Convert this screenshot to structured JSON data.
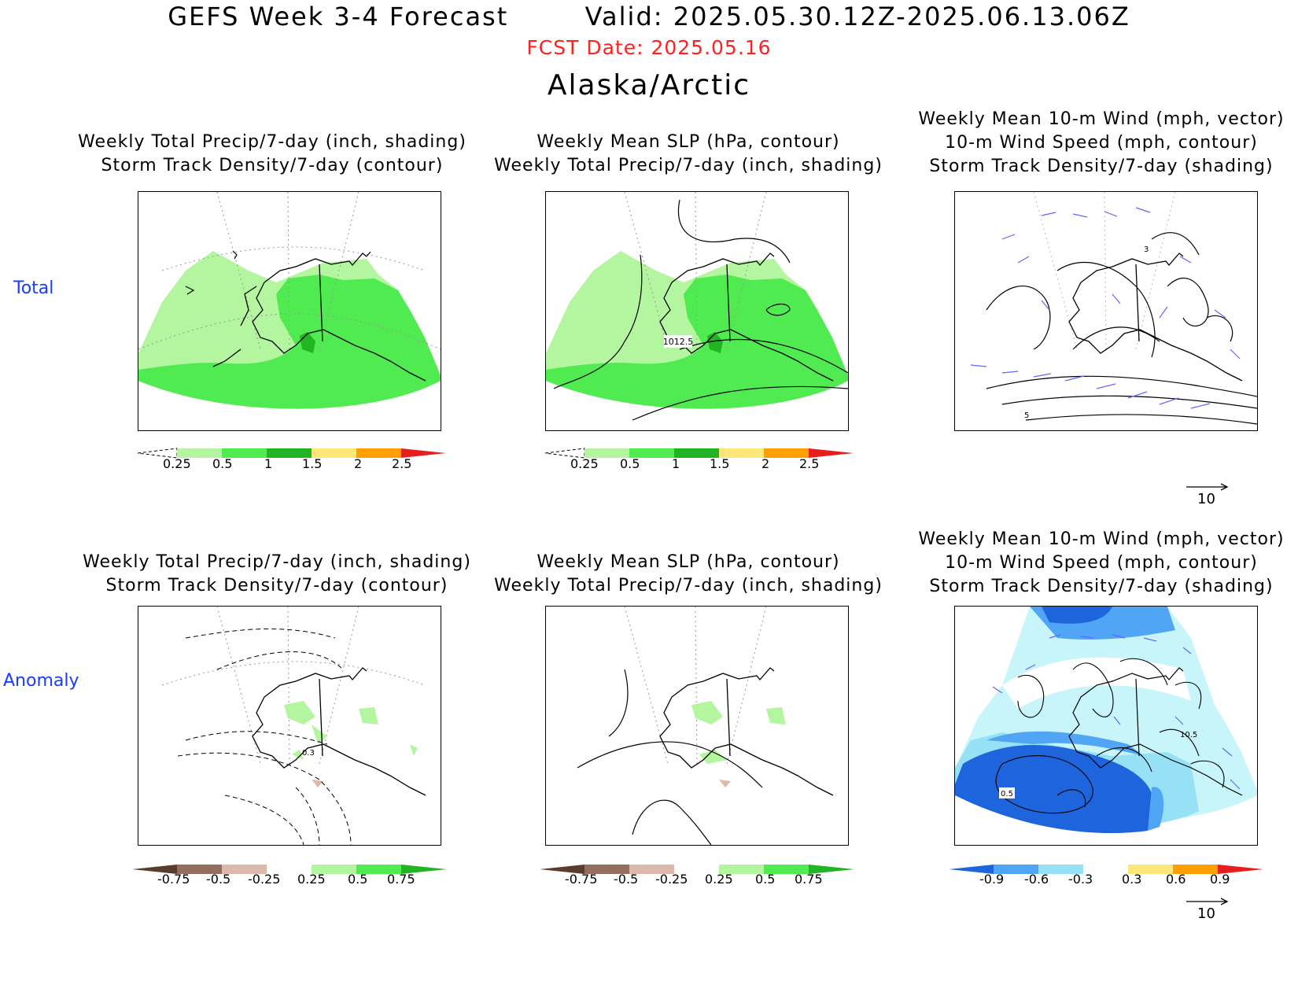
{
  "header": {
    "title": "GEFS Week 3-4 Forecast",
    "valid": "Valid: 2025.05.30.12Z-2025.06.13.06Z",
    "fcst_date": "FCST Date: 2025.05.16",
    "region": "Alaska/Arctic"
  },
  "rows": {
    "total": "Total",
    "anomaly": "Anomaly"
  },
  "panels": {
    "precip": {
      "line1": "Weekly Total Precip/7-day (inch, shading)",
      "line2": "Storm Track Density/7-day (contour)"
    },
    "slp": {
      "line1": "Weekly Mean SLP (hPa, contour)",
      "line2": "Weekly Total Precip/7-day (inch, shading)"
    },
    "wind": {
      "line1": "Weekly Mean 10-m Wind (mph, vector)",
      "line2": "10-m Wind Speed (mph, contour)",
      "line3": "Storm Track Density/7-day (shading)"
    }
  },
  "contour_labels": {
    "slp_total": "1012.5",
    "wind_total_a": "3",
    "wind_total_b": "5",
    "precip_anom": "0.3",
    "wind_anom_a": "0.5",
    "wind_anom_b": "10.5"
  },
  "colorbars": {
    "precip_total": [
      "0.25",
      "0.5",
      "1",
      "1.5",
      "2",
      "2.5"
    ],
    "precip_anom": [
      "-0.75",
      "-0.5",
      "-0.25",
      "0.25",
      "0.5",
      "0.75"
    ],
    "storm_anom": [
      "-0.9",
      "-0.6",
      "-0.3",
      "0.3",
      "0.6",
      "0.9"
    ]
  },
  "colors": {
    "p_light": "#b4f5a0",
    "p_mid": "#50eb50",
    "p_dark": "#23b423",
    "p_yellow": "#ffe678",
    "p_orange": "#ffa000",
    "p_red": "#e61e1e",
    "brown_dark": "#5a3c2d",
    "brown_mid": "#966e5f",
    "brown_light": "#dcb9aa",
    "blue_dark": "#1e64dc",
    "blue_mid": "#50a5f5",
    "blue_light": "#96e1f5",
    "cyan_light": "#c8f5fa",
    "vector": "#6464ff"
  },
  "wind_reference": "10"
}
